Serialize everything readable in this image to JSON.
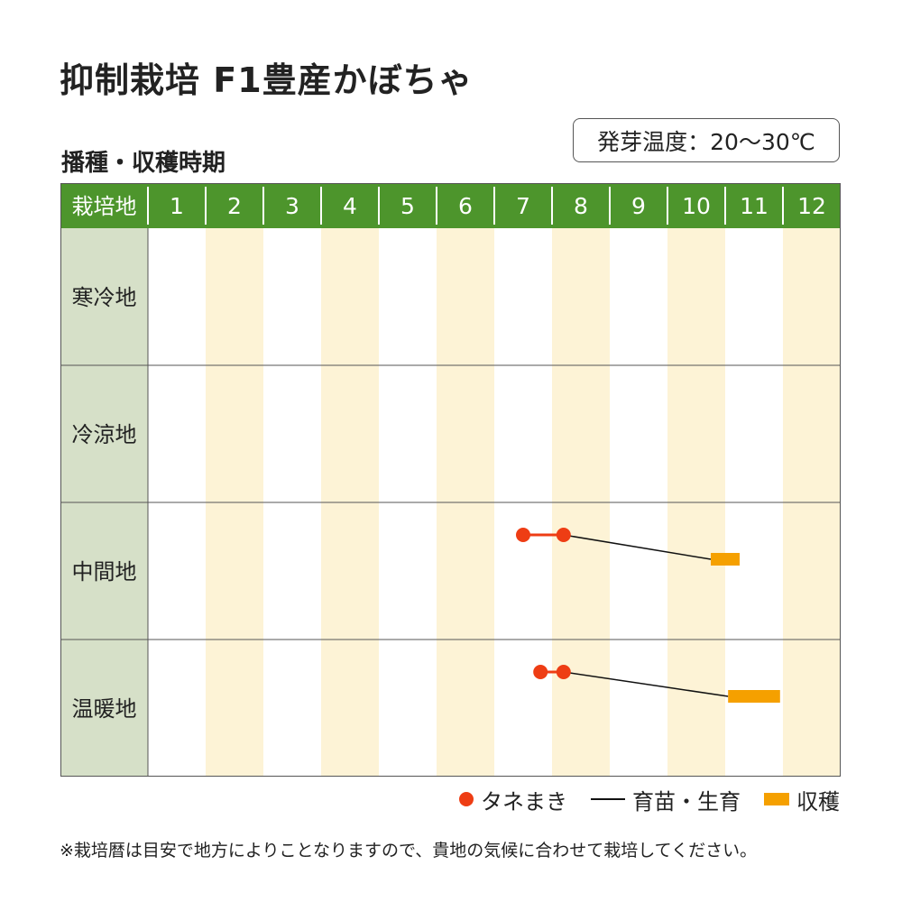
{
  "title": "抑制栽培 F1豊産かぼちゃ",
  "subtitle": "播種・収穫時期",
  "germination": "発芽温度：20〜30℃",
  "colors": {
    "header_green": "#4d952c",
    "label_col": "#d6e0c8",
    "stripe": "#fdf3d6",
    "sowing": "#ee3d14",
    "growing": "#111111",
    "harvest": "#f5a000",
    "grid": "#555555"
  },
  "chart_data": {
    "type": "table",
    "header_label": "栽培地",
    "months": [
      "1",
      "2",
      "3",
      "4",
      "5",
      "6",
      "7",
      "8",
      "9",
      "10",
      "11",
      "12"
    ],
    "regions": [
      {
        "name": "寒冷地",
        "sowing": null,
        "growing": null,
        "harvest": null
      },
      {
        "name": "冷涼地",
        "sowing": null,
        "growing": null,
        "harvest": null
      },
      {
        "name": "中間地",
        "sowing": [
          7.5,
          8.2
        ],
        "growing": [
          8.2,
          10.75
        ],
        "harvest": [
          10.75,
          11.25
        ]
      },
      {
        "name": "温暖地",
        "sowing": [
          7.8,
          8.2
        ],
        "growing": [
          8.2,
          11.05
        ],
        "harvest": [
          11.05,
          11.95
        ]
      }
    ]
  },
  "legend": {
    "sowing": "タネまき",
    "growing": "育苗・生育",
    "harvest": "収穫"
  },
  "footnote": "※栽培暦は目安で地方によりことなりますので、貴地の気候に合わせて栽培してください。"
}
